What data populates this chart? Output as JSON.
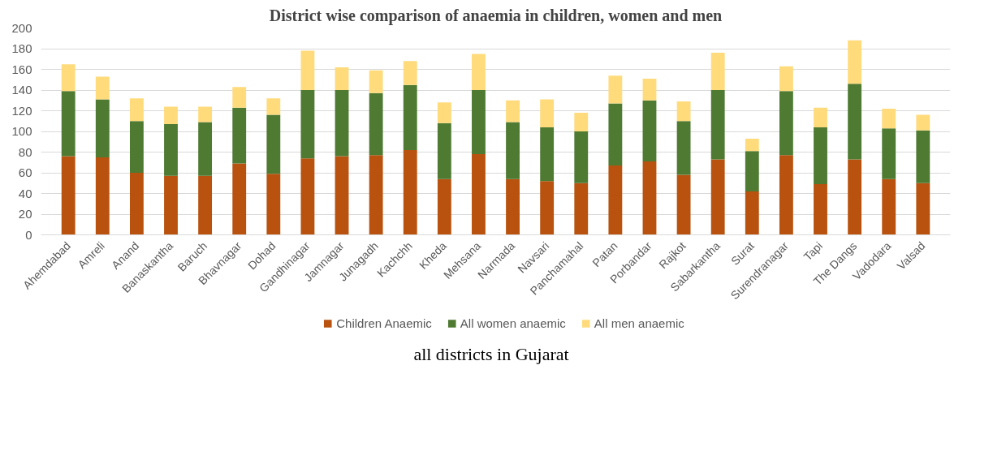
{
  "chart_data": {
    "type": "bar",
    "stacked": true,
    "title": "District wise comparison of anaemia in children, women and men",
    "categories": [
      "Ahemdabad",
      "Amreli",
      "Anand",
      "Banaskantha",
      "Baruch",
      "Bhavnagar",
      "Dohad",
      "Gandhinagar",
      "Jamnagar",
      "Junagadh",
      "Kachchh",
      "Kheda",
      "Mehsana",
      "Narmada",
      "Navsari",
      "Panchamahal",
      "Patan",
      "Porbandar",
      "Rajkot",
      "Sabarkantha",
      "Surat",
      "Surendranagar",
      "Tapi",
      "The Dangs",
      "Vadodara",
      "Valsad"
    ],
    "series": [
      {
        "name": "Children Anaemic",
        "color": "#b8520e",
        "values": [
          76,
          75,
          60,
          57,
          57,
          69,
          59,
          74,
          76,
          77,
          82,
          54,
          78,
          54,
          52,
          50,
          67,
          71,
          58,
          73,
          42,
          77,
          49,
          73,
          54,
          50
        ]
      },
      {
        "name": "All women anaemic",
        "color": "#4e7a32",
        "values": [
          63,
          56,
          50,
          50,
          52,
          54,
          57,
          66,
          64,
          60,
          63,
          54,
          62,
          55,
          52,
          50,
          60,
          59,
          52,
          67,
          39,
          62,
          55,
          73,
          49,
          51
        ]
      },
      {
        "name": "All men anaemic",
        "color": "#ffdb7c",
        "values": [
          26,
          22,
          22,
          17,
          15,
          20,
          16,
          38,
          22,
          22,
          23,
          20,
          35,
          21,
          27,
          18,
          27,
          21,
          19,
          36,
          12,
          24,
          19,
          42,
          19,
          15
        ]
      }
    ],
    "ylim": [
      0,
      200
    ],
    "yticks": [
      0,
      20,
      40,
      60,
      80,
      100,
      120,
      140,
      160,
      180,
      200
    ],
    "grid": "y",
    "legend": "bottom",
    "annotations": [
      "all districts in Gujarat"
    ]
  }
}
